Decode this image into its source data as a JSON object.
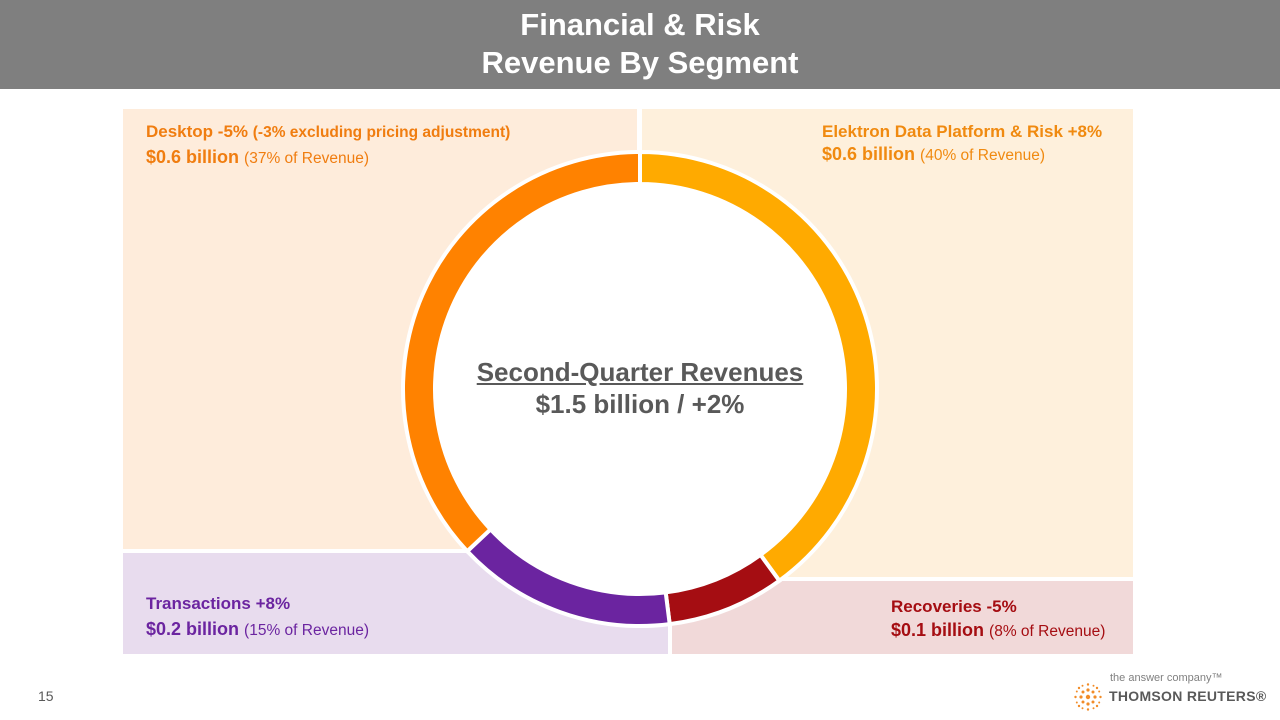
{
  "header": {
    "title_line1": "Financial & Risk",
    "title_line2": "Revenue By Segment"
  },
  "center": {
    "title": "Second-Quarter Revenues",
    "value": "$1.5 billion / +2%"
  },
  "segments": {
    "desktop": {
      "name": "Desktop -5%",
      "note": "(-3% excluding pricing adjustment)",
      "amount": "$0.6 billion",
      "share": "(37% of Revenue)"
    },
    "elektron": {
      "name": "Elektron Data Platform & Risk +8%",
      "amount": "$0.6 billion",
      "share": "(40% of Revenue)"
    },
    "transactions": {
      "name": "Transactions +8%",
      "amount": "$0.2 billion",
      "share": "(15% of Revenue)"
    },
    "recoveries": {
      "name": "Recoveries -5%",
      "amount": "$0.1 billion",
      "share": "(8% of Revenue)"
    }
  },
  "footer": {
    "page_number": "15",
    "tagline": "the answer company™",
    "brand": "THOMSON REUTERS®"
  },
  "colors": {
    "header_bg": "#7f7f7f",
    "desktop": "#ff8200",
    "elektron": "#ffaa00",
    "transactions": "#6b24a0",
    "recoveries": "#a50d12",
    "desktop_bg": "#feecdb",
    "elektron_bg": "#fef0dc",
    "transactions_bg": "#e8dcee",
    "recoveries_bg": "#f1d9d9",
    "desktop_text": "#f07d10",
    "elektron_text": "#f08a10",
    "transactions_text": "#6b24a0",
    "recoveries_text": "#a50d12",
    "logo": "#f28c28"
  },
  "chart_data": {
    "type": "pie",
    "donut": true,
    "title": "Second-Quarter Revenues",
    "categories": [
      "Elektron Data Platform & Risk",
      "Recoveries",
      "Transactions",
      "Desktop"
    ],
    "values": [
      40,
      8,
      15,
      37
    ],
    "unit": "% of Revenue"
  }
}
